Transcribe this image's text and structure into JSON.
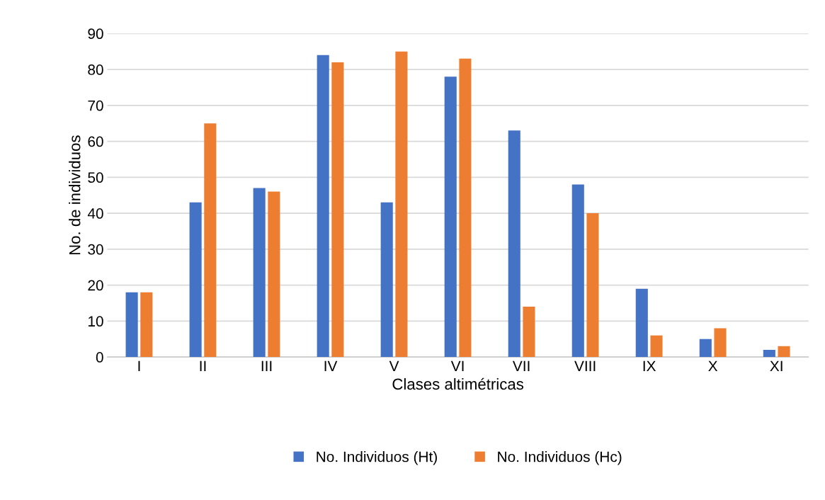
{
  "chart_data": {
    "type": "bar",
    "xlabel": "Clases altimétricas",
    "ylabel": "No. de individuos",
    "categories": [
      "I",
      "II",
      "III",
      "IV",
      "V",
      "VI",
      "VII",
      "VIII",
      "IX",
      "X",
      "XI"
    ],
    "series": [
      {
        "name": "No. Individuos (Ht)",
        "color": "#4472c4",
        "values": [
          18,
          43,
          47,
          84,
          43,
          78,
          63,
          48,
          19,
          5,
          2
        ]
      },
      {
        "name": "No. Individuos (Hc)",
        "color": "#ed7d31",
        "values": [
          18,
          65,
          46,
          82,
          85,
          83,
          14,
          40,
          6,
          8,
          3
        ]
      }
    ],
    "ylim": [
      0,
      90
    ],
    "yticks": [
      0,
      10,
      20,
      30,
      40,
      50,
      60,
      70,
      80,
      90
    ],
    "grid": "y",
    "legend": "bottom"
  }
}
